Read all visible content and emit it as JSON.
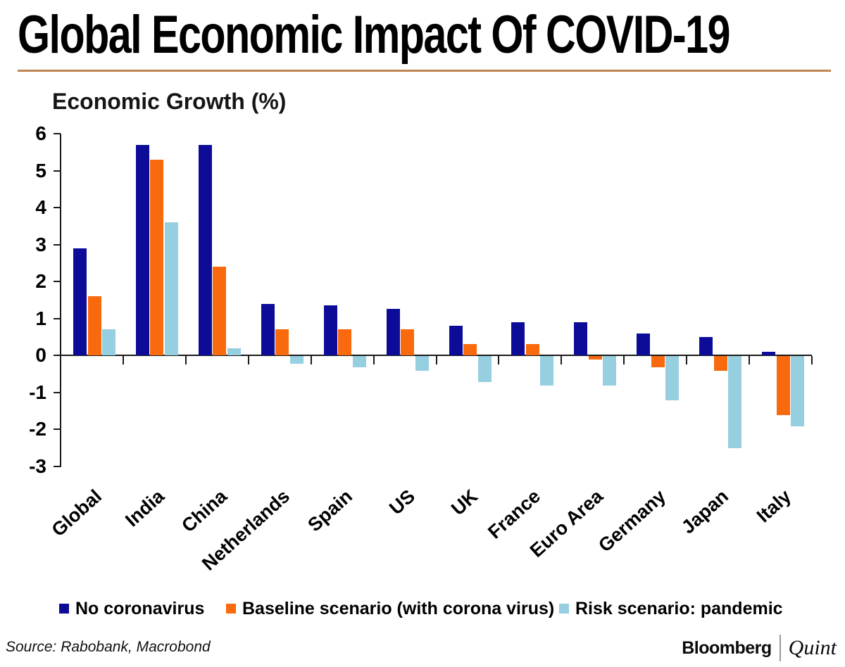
{
  "header": {
    "title": "Global Economic Impact Of COVID-19",
    "rule_color": "#BE8452"
  },
  "chart_data": {
    "type": "bar",
    "title": "Economic Growth (%)",
    "categories": [
      "Global",
      "India",
      "China",
      "Netherlands",
      "Spain",
      "US",
      "UK",
      "France",
      "Euro Area",
      "Germany",
      "Japan",
      "Italy"
    ],
    "series": [
      {
        "name": "No coronavirus",
        "color": "#0C0C99",
        "values": [
          2.9,
          5.7,
          5.7,
          1.4,
          1.35,
          1.25,
          0.8,
          0.9,
          0.9,
          0.6,
          0.5,
          0.1
        ]
      },
      {
        "name": "Baseline scenario (with corona virus)",
        "color": "#F9690E",
        "values": [
          1.6,
          5.3,
          2.4,
          0.7,
          0.7,
          0.7,
          0.3,
          0.3,
          -0.1,
          -0.3,
          -0.4,
          -1.6
        ]
      },
      {
        "name": "Risk scenario: pandemic",
        "color": "#96CFE0",
        "values": [
          0.7,
          3.6,
          0.2,
          -0.2,
          -0.3,
          -0.4,
          -0.7,
          -0.8,
          -0.8,
          -1.2,
          -2.5,
          -1.9
        ]
      }
    ],
    "xlabel": "",
    "ylabel": "Economic Growth (%)",
    "ylim": [
      -3,
      6
    ],
    "yticks": [
      6,
      5,
      4,
      3,
      2,
      1,
      0,
      -1,
      -2,
      -3
    ],
    "grid": false,
    "legend_position": "bottom"
  },
  "footer": {
    "source": "Source: Rabobank, Macrobond",
    "brand_bloomberg": "Bloomberg",
    "brand_quint": "Quint"
  }
}
